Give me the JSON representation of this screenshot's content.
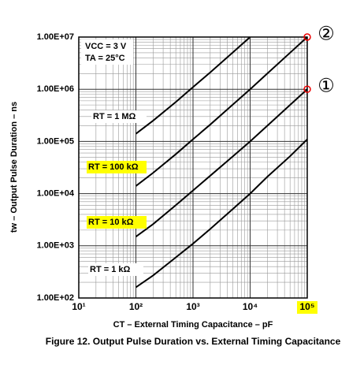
{
  "chart_data": {
    "type": "line",
    "title": "Figure 12. Output Pulse Duration vs. External Timing Capacitance",
    "x_label": "CT – External Timing Capacitance – pF",
    "y_label": "tw – Output Pulse Duration – ns",
    "log_x": true,
    "log_y": true,
    "grid": true,
    "xlim": [
      10,
      100000
    ],
    "ylim": [
      100,
      10000000
    ],
    "xticks": [
      {
        "value": 10,
        "label": "10¹"
      },
      {
        "value": 100,
        "label": "10²"
      },
      {
        "value": 1000,
        "label": "10³"
      },
      {
        "value": 10000,
        "label": "10⁴"
      },
      {
        "value": 100000,
        "label": "10⁵"
      }
    ],
    "highlighted_xticks": [
      4
    ],
    "yticks": [
      {
        "value": 100,
        "label": "1.00E+02"
      },
      {
        "value": 1000,
        "label": "1.00E+03"
      },
      {
        "value": 10000,
        "label": "1.00E+04"
      },
      {
        "value": 100000,
        "label": "1.00E+05"
      },
      {
        "value": 1000000,
        "label": "1.00E+06"
      },
      {
        "value": 10000000,
        "label": "1.00E+07"
      }
    ],
    "conditions": [
      "VCC = 3 V",
      "TA = 25°C"
    ],
    "series": [
      {
        "name": "RT = 1 MΩ",
        "color": "#000000",
        "highlight": false,
        "x": [
          100,
          200,
          500,
          1000,
          2000,
          5000,
          10000
        ],
        "values": [
          140000,
          250000,
          570000,
          1100000,
          2100000,
          5100000,
          10000000
        ]
      },
      {
        "name": "RT = 100 kΩ",
        "color": "#000000",
        "highlight": true,
        "x": [
          100,
          200,
          500,
          1000,
          2000,
          5000,
          10000,
          20000,
          50000,
          100000
        ],
        "values": [
          14000,
          25000,
          57000,
          110000,
          210000,
          510000,
          1000000,
          2000000,
          5000000,
          10000000
        ]
      },
      {
        "name": "RT = 10 kΩ",
        "color": "#000000",
        "highlight": true,
        "x": [
          100,
          200,
          500,
          1000,
          2000,
          5000,
          10000,
          20000,
          50000,
          100000
        ],
        "values": [
          1500,
          2600,
          6000,
          11500,
          22000,
          52000,
          100000,
          200000,
          500000,
          1000000
        ]
      },
      {
        "name": "RT = 1 kΩ",
        "color": "#000000",
        "highlight": false,
        "x": [
          100,
          200,
          500,
          1000,
          2000,
          5000,
          10000,
          20000,
          50000,
          100000
        ],
        "values": [
          160,
          270,
          600,
          1100,
          2100,
          5100,
          10000,
          21000,
          52000,
          110000
        ]
      }
    ],
    "markers": [
      {
        "text": "②",
        "x": 100000,
        "y": 10000000
      },
      {
        "text": "①",
        "x": 100000,
        "y": 1000000
      }
    ]
  }
}
